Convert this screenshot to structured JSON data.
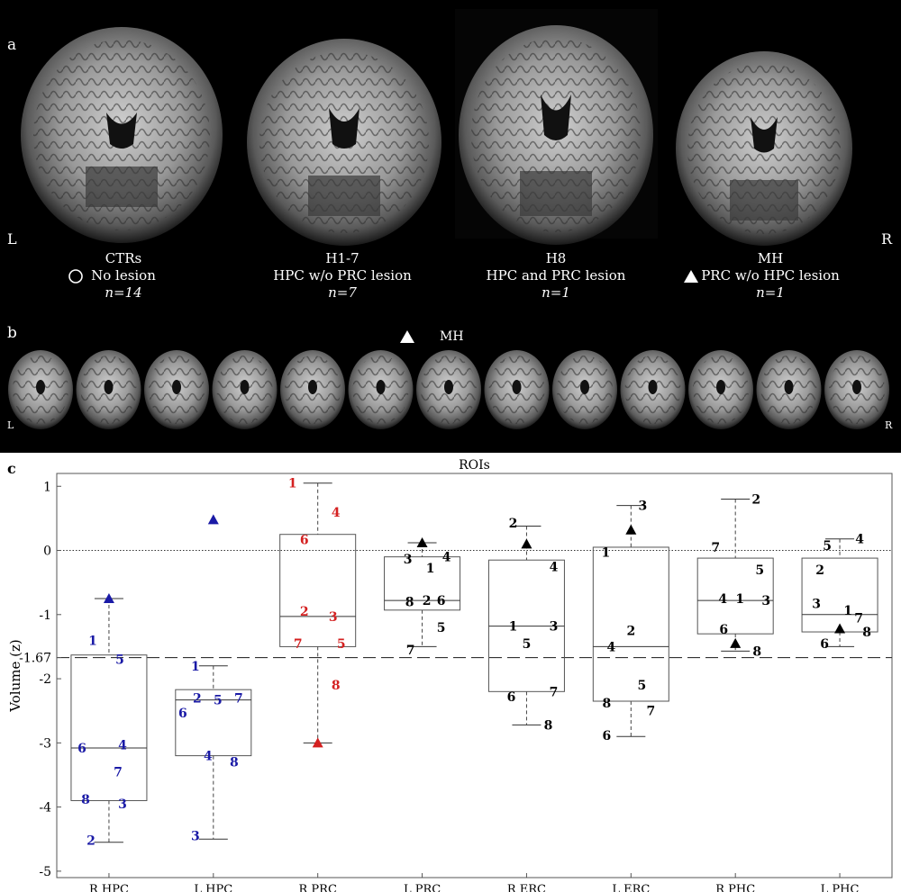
{
  "panel_a": {
    "label": "a",
    "left_marker": "L",
    "right_marker": "R",
    "groups": [
      {
        "name": "CTRs",
        "symbol": "circle",
        "description": "No lesion",
        "n_label": "n=14"
      },
      {
        "name": "H1-7",
        "symbol": "",
        "description": "HPC w/o PRC lesion",
        "n_label": "n=7"
      },
      {
        "name": "H8",
        "symbol": "",
        "description": "HPC and PRC lesion",
        "n_label": "n=1"
      },
      {
        "name": "MH",
        "symbol": "triangle",
        "description": "PRC w/o HPC lesion",
        "n_label": "n=1"
      }
    ]
  },
  "panel_b": {
    "label": "b",
    "caption": "MH",
    "left_marker": "L",
    "right_marker": "R",
    "slice_count": 13
  },
  "panel_c": {
    "label": "c"
  },
  "colors": {
    "hpc_points": "#1a1aa6",
    "prc_points": "#d42020",
    "other_points": "#000000",
    "background_top": "#000000",
    "background_chart": "#ffffff"
  },
  "chart_data": {
    "type": "box",
    "title": "ROIs",
    "ylabel": "Volume (z)",
    "ylim": [
      -5.1,
      1.2
    ],
    "yticks": [
      1,
      0,
      -1,
      -2,
      -3,
      -4,
      -5
    ],
    "extra_tick": -1.67,
    "extra_tick_label": "-1.67",
    "reference_lines": [
      {
        "y": 0,
        "style": "dotted"
      },
      {
        "y": -1.67,
        "style": "dashed"
      }
    ],
    "categories": [
      "R HPC",
      "L HPC",
      "R PRC",
      "L PRC",
      "R ERC",
      "L ERC",
      "R PHC",
      "L PHC"
    ],
    "boxes": [
      {
        "q1": -3.9,
        "median": -3.08,
        "q3": -1.63,
        "lower": -4.55,
        "upper": -0.75,
        "color": "#1a1aa6"
      },
      {
        "q1": -3.2,
        "median": -2.33,
        "q3": -2.17,
        "lower": -4.5,
        "upper": -1.8,
        "color": "#1a1aa6"
      },
      {
        "q1": -1.5,
        "median": -1.03,
        "q3": 0.25,
        "lower": -3.0,
        "upper": 1.05,
        "color": "#d42020"
      },
      {
        "q1": -0.93,
        "median": -0.78,
        "q3": -0.1,
        "lower": -1.5,
        "upper": 0.12,
        "color": "#000000"
      },
      {
        "q1": -2.2,
        "median": -1.18,
        "q3": -0.15,
        "lower": -2.72,
        "upper": 0.38,
        "color": "#000000"
      },
      {
        "q1": -2.35,
        "median": -1.5,
        "q3": 0.05,
        "lower": -2.9,
        "upper": 0.7,
        "color": "#000000"
      },
      {
        "q1": -1.3,
        "median": -0.78,
        "q3": -0.12,
        "lower": -1.57,
        "upper": 0.8,
        "color": "#000000"
      },
      {
        "q1": -1.27,
        "median": -1.0,
        "q3": -0.12,
        "lower": -1.5,
        "upper": 0.18,
        "color": "#000000"
      }
    ],
    "points": [
      [
        {
          "label": "1",
          "y": -1.4,
          "dx": -18
        },
        {
          "label": "2",
          "y": -4.52,
          "dx": -20
        },
        {
          "label": "3",
          "y": -3.95,
          "dx": 15
        },
        {
          "label": "4",
          "y": -3.03,
          "dx": 15
        },
        {
          "label": "5",
          "y": -1.7,
          "dx": 12
        },
        {
          "label": "6",
          "y": -3.08,
          "dx": -30
        },
        {
          "label": "7",
          "y": -3.45,
          "dx": 10
        },
        {
          "label": "8",
          "y": -3.88,
          "dx": -26
        }
      ],
      [
        {
          "label": "1",
          "y": -1.8,
          "dx": -20
        },
        {
          "label": "2",
          "y": -2.3,
          "dx": -18
        },
        {
          "label": "3",
          "y": -4.45,
          "dx": -20
        },
        {
          "label": "4",
          "y": -3.2,
          "dx": -6
        },
        {
          "label": "5",
          "y": -2.33,
          "dx": 5
        },
        {
          "label": "6",
          "y": -2.53,
          "dx": -34
        },
        {
          "label": "7",
          "y": -2.3,
          "dx": 28
        },
        {
          "label": "8",
          "y": -3.3,
          "dx": 23
        }
      ],
      [
        {
          "label": "1",
          "y": 1.05,
          "dx": -28
        },
        {
          "label": "2",
          "y": -0.95,
          "dx": -15
        },
        {
          "label": "3",
          "y": -1.03,
          "dx": 17
        },
        {
          "label": "4",
          "y": 0.6,
          "dx": 20
        },
        {
          "label": "5",
          "y": -1.45,
          "dx": 26
        },
        {
          "label": "6",
          "y": 0.17,
          "dx": -15
        },
        {
          "label": "7",
          "y": -1.45,
          "dx": -22
        },
        {
          "label": "8",
          "y": -2.1,
          "dx": 20
        }
      ],
      [
        {
          "label": "1",
          "y": -0.27,
          "dx": 9
        },
        {
          "label": "2",
          "y": -0.78,
          "dx": 5
        },
        {
          "label": "3",
          "y": -0.13,
          "dx": -16
        },
        {
          "label": "4",
          "y": -0.1,
          "dx": 27
        },
        {
          "label": "5",
          "y": -1.2,
          "dx": 21
        },
        {
          "label": "6",
          "y": -0.78,
          "dx": 21
        },
        {
          "label": "7",
          "y": -1.55,
          "dx": -13
        },
        {
          "label": "8",
          "y": -0.8,
          "dx": -14
        }
      ],
      [
        {
          "label": "1",
          "y": -1.18,
          "dx": -15
        },
        {
          "label": "2",
          "y": 0.43,
          "dx": -15
        },
        {
          "label": "3",
          "y": -1.18,
          "dx": 30
        },
        {
          "label": "4",
          "y": -0.25,
          "dx": 30
        },
        {
          "label": "5",
          "y": -1.45,
          "dx": 0
        },
        {
          "label": "6",
          "y": -2.28,
          "dx": -17
        },
        {
          "label": "7",
          "y": -2.2,
          "dx": 30
        },
        {
          "label": "8",
          "y": -2.72,
          "dx": 24
        }
      ],
      [
        {
          "label": "1",
          "y": -0.03,
          "dx": -28
        },
        {
          "label": "2",
          "y": -1.25,
          "dx": 0
        },
        {
          "label": "3",
          "y": 0.7,
          "dx": 13
        },
        {
          "label": "4",
          "y": -1.5,
          "dx": -22
        },
        {
          "label": "5",
          "y": -2.1,
          "dx": 12
        },
        {
          "label": "6",
          "y": -2.88,
          "dx": -27
        },
        {
          "label": "7",
          "y": -2.5,
          "dx": 22
        },
        {
          "label": "8",
          "y": -2.38,
          "dx": -27
        }
      ],
      [
        {
          "label": "1",
          "y": -0.75,
          "dx": 5
        },
        {
          "label": "2",
          "y": 0.8,
          "dx": 23
        },
        {
          "label": "3",
          "y": -0.78,
          "dx": 34
        },
        {
          "label": "4",
          "y": -0.75,
          "dx": -14
        },
        {
          "label": "5",
          "y": -0.3,
          "dx": 27
        },
        {
          "label": "6",
          "y": -1.23,
          "dx": -13
        },
        {
          "label": "7",
          "y": 0.05,
          "dx": -22
        },
        {
          "label": "8",
          "y": -1.57,
          "dx": 24
        }
      ],
      [
        {
          "label": "1",
          "y": -0.93,
          "dx": 9
        },
        {
          "label": "2",
          "y": -0.3,
          "dx": -22
        },
        {
          "label": "3",
          "y": -0.83,
          "dx": -26
        },
        {
          "label": "4",
          "y": 0.18,
          "dx": 22
        },
        {
          "label": "5",
          "y": 0.08,
          "dx": -14
        },
        {
          "label": "6",
          "y": -1.45,
          "dx": -17
        },
        {
          "label": "7",
          "y": -1.05,
          "dx": 21
        },
        {
          "label": "8",
          "y": -1.27,
          "dx": 30
        }
      ]
    ],
    "mh_markers": [
      {
        "y": -0.75,
        "color": "#1a1aa6"
      },
      {
        "y": 0.48,
        "color": "#1a1aa6"
      },
      {
        "y": -3.0,
        "color": "#d42020"
      },
      {
        "y": 0.12,
        "color": "#000000"
      },
      {
        "y": 0.1,
        "color": "#000000"
      },
      {
        "y": 0.32,
        "color": "#000000"
      },
      {
        "y": -1.45,
        "color": "#000000"
      },
      {
        "y": -1.22,
        "color": "#000000"
      }
    ]
  }
}
